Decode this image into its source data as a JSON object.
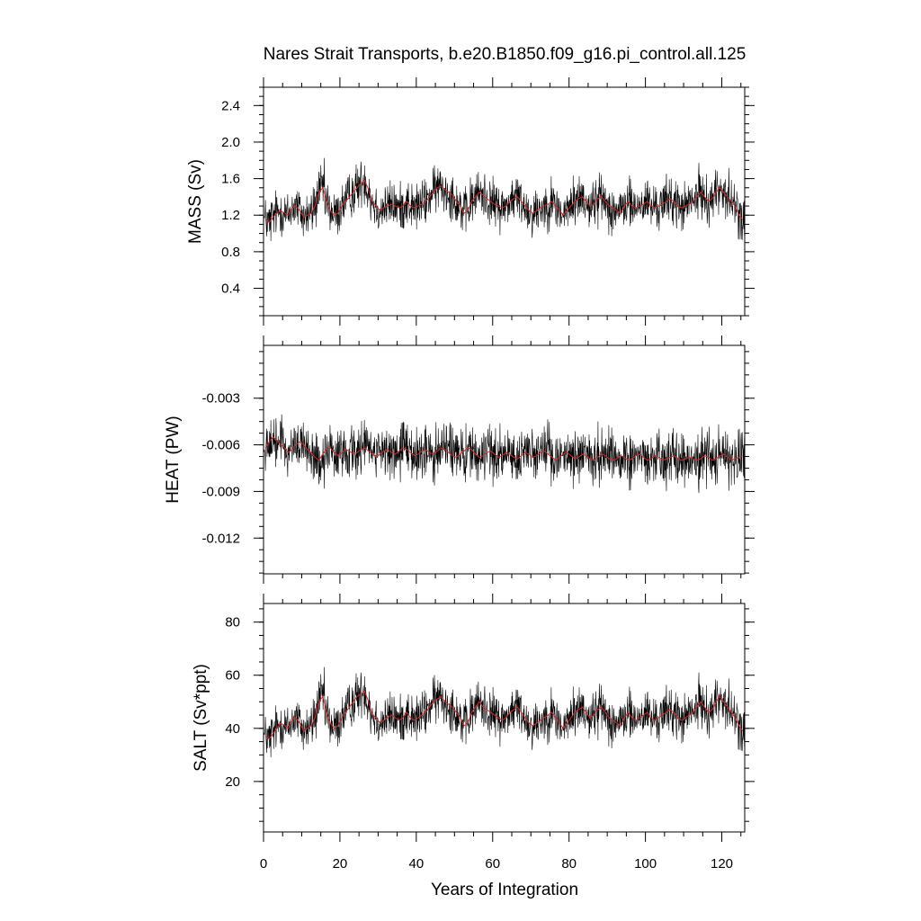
{
  "chart_data": {
    "type": "line",
    "title": "Nares Strait Transports, b.e20.B1850.f09_g16.pi_control.all.125",
    "xlabel": "Years of Integration",
    "xlim": [
      0,
      126
    ],
    "xticks": [
      0,
      20,
      40,
      60,
      80,
      100,
      120
    ],
    "xtick_labels": [
      "0",
      "20",
      "40",
      "60",
      "80",
      "100",
      "120"
    ],
    "series_colors": {
      "monthly": "#000000",
      "annual_mean": "#d62828"
    },
    "panels": [
      {
        "ylabel": "MASS (Sv)",
        "ylim": [
          0.1,
          2.6
        ],
        "yticks": [
          0.4,
          0.8,
          1.2,
          1.6,
          2.0,
          2.4
        ],
        "ytick_labels": [
          "0.4",
          "0.8",
          "1.2",
          "1.6",
          "2.0",
          "2.4"
        ],
        "mean_level": 1.3,
        "spread": 0.22,
        "annual_mean": [
          1.15,
          1.12,
          1.18,
          1.22,
          1.25,
          1.22,
          1.2,
          1.28,
          1.3,
          1.25,
          1.18,
          1.2,
          1.22,
          1.3,
          1.45,
          1.5,
          1.35,
          1.25,
          1.2,
          1.22,
          1.3,
          1.35,
          1.4,
          1.45,
          1.5,
          1.55,
          1.58,
          1.48,
          1.35,
          1.3,
          1.25,
          1.28,
          1.3,
          1.32,
          1.3,
          1.28,
          1.3,
          1.35,
          1.3,
          1.28,
          1.3,
          1.32,
          1.35,
          1.4,
          1.45,
          1.5,
          1.52,
          1.48,
          1.45,
          1.42,
          1.35,
          1.3,
          1.22,
          1.25,
          1.35,
          1.4,
          1.45,
          1.42,
          1.38,
          1.35,
          1.32,
          1.3,
          1.28,
          1.3,
          1.35,
          1.38,
          1.4,
          1.35,
          1.3,
          1.25,
          1.22,
          1.25,
          1.28,
          1.3,
          1.32,
          1.35,
          1.3,
          1.25,
          1.2,
          1.25,
          1.3,
          1.35,
          1.38,
          1.4,
          1.35,
          1.3,
          1.32,
          1.38,
          1.4,
          1.35,
          1.3,
          1.28,
          1.25,
          1.22,
          1.3,
          1.35,
          1.3,
          1.28,
          1.3,
          1.32,
          1.35,
          1.3,
          1.28,
          1.3,
          1.32,
          1.35,
          1.38,
          1.35,
          1.3,
          1.28,
          1.3,
          1.32,
          1.35,
          1.4,
          1.45,
          1.4,
          1.35,
          1.38,
          1.45,
          1.5,
          1.45,
          1.4,
          1.35,
          1.3,
          1.2,
          1.15
        ]
      },
      {
        "ylabel": "HEAT (PW)",
        "ylim": [
          -0.0143,
          0.0004
        ],
        "yticks": [
          -0.003,
          -0.006,
          -0.009,
          -0.012
        ],
        "ytick_labels": [
          "-0.003",
          "-0.006",
          "-0.009",
          "-0.012"
        ],
        "mean_level": -0.0065,
        "spread": 0.0015,
        "annual_mean": [
          -0.0062,
          -0.0058,
          -0.0055,
          -0.0057,
          -0.006,
          -0.0062,
          -0.0065,
          -0.0063,
          -0.006,
          -0.0058,
          -0.006,
          -0.0063,
          -0.0065,
          -0.0068,
          -0.007,
          -0.0066,
          -0.0063,
          -0.0062,
          -0.0065,
          -0.0067,
          -0.0065,
          -0.0063,
          -0.0064,
          -0.0066,
          -0.0065,
          -0.0063,
          -0.0062,
          -0.0064,
          -0.0066,
          -0.0068,
          -0.0066,
          -0.0064,
          -0.0063,
          -0.0065,
          -0.0066,
          -0.0064,
          -0.0062,
          -0.0063,
          -0.0065,
          -0.0067,
          -0.0066,
          -0.0064,
          -0.0063,
          -0.0065,
          -0.0066,
          -0.0064,
          -0.0062,
          -0.0063,
          -0.0065,
          -0.0067,
          -0.0068,
          -0.0066,
          -0.0064,
          -0.0062,
          -0.0063,
          -0.0066,
          -0.0068,
          -0.0067,
          -0.0065,
          -0.0064,
          -0.0066,
          -0.0068,
          -0.0067,
          -0.0065,
          -0.0066,
          -0.0068,
          -0.0069,
          -0.0067,
          -0.0065,
          -0.0066,
          -0.0068,
          -0.0067,
          -0.0065,
          -0.0064,
          -0.0066,
          -0.0068,
          -0.007,
          -0.0068,
          -0.0066,
          -0.0065,
          -0.0067,
          -0.0069,
          -0.0068,
          -0.0066,
          -0.0067,
          -0.0069,
          -0.007,
          -0.0068,
          -0.0066,
          -0.0067,
          -0.0069,
          -0.007,
          -0.0069,
          -0.0067,
          -0.0068,
          -0.007,
          -0.0069,
          -0.0067,
          -0.0066,
          -0.0068,
          -0.007,
          -0.0069,
          -0.0067,
          -0.0068,
          -0.007,
          -0.0069,
          -0.0068,
          -0.0067,
          -0.0069,
          -0.007,
          -0.0069,
          -0.0068,
          -0.0069,
          -0.007,
          -0.0069,
          -0.0067,
          -0.0068,
          -0.007,
          -0.0069,
          -0.0067,
          -0.0066,
          -0.0068,
          -0.007,
          -0.0069,
          -0.0068,
          -0.0067
        ]
      },
      {
        "ylabel": "SALT (Sv*ppt)",
        "ylim": [
          1,
          87
        ],
        "yticks": [
          20,
          40,
          60,
          80
        ],
        "ytick_labels": [
          "20",
          "40",
          "60",
          "80"
        ],
        "mean_level": 44,
        "spread": 7.5,
        "annual_mean": [
          37,
          36,
          38,
          40,
          42,
          41,
          40,
          43,
          44,
          42,
          39,
          40,
          41,
          44,
          50,
          52,
          46,
          42,
          40,
          41,
          44,
          46,
          48,
          50,
          52,
          53,
          54,
          50,
          45,
          44,
          42,
          43,
          44,
          45,
          44,
          43,
          44,
          46,
          44,
          43,
          44,
          45,
          46,
          48,
          50,
          51,
          52,
          50,
          49,
          48,
          46,
          44,
          41,
          42,
          46,
          48,
          50,
          48,
          47,
          46,
          45,
          44,
          43,
          44,
          46,
          47,
          48,
          46,
          44,
          42,
          41,
          42,
          43,
          44,
          45,
          46,
          44,
          42,
          40,
          42,
          44,
          46,
          47,
          48,
          46,
          44,
          45,
          47,
          48,
          46,
          44,
          43,
          42,
          41,
          44,
          46,
          44,
          43,
          44,
          45,
          46,
          44,
          43,
          44,
          45,
          46,
          47,
          46,
          44,
          43,
          44,
          45,
          46,
          48,
          50,
          48,
          46,
          47,
          50,
          52,
          50,
          48,
          46,
          44,
          41,
          39
        ]
      }
    ]
  }
}
